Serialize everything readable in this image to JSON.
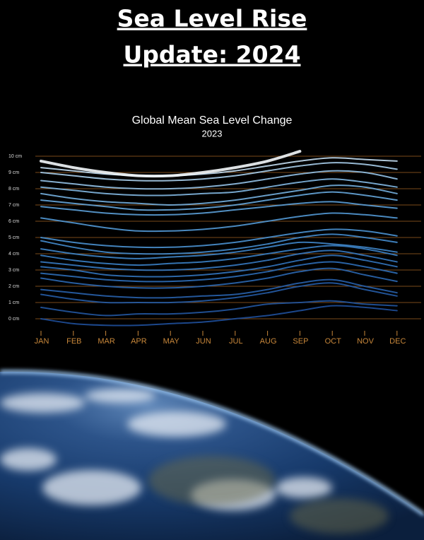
{
  "header": {
    "title": [
      "Sea Level Rise",
      "Update: 2024"
    ]
  },
  "chart_data": {
    "type": "line",
    "title": "Global Mean Sea Level Change",
    "subtitle": "2023",
    "categories": [
      "JAN",
      "FEB",
      "MAR",
      "APR",
      "MAY",
      "JUN",
      "JUL",
      "AUG",
      "SEP",
      "OCT",
      "NOV",
      "DEC"
    ],
    "ylim": [
      0,
      10
    ],
    "yticks": [
      {
        "value": 0,
        "label": "0 cm"
      },
      {
        "value": 1,
        "label": "1 cm"
      },
      {
        "value": 2,
        "label": "2 cm"
      },
      {
        "value": 3,
        "label": "3 cm"
      },
      {
        "value": 4,
        "label": "4 cm"
      },
      {
        "value": 5,
        "label": "5 cm"
      },
      {
        "value": 6,
        "label": "6 cm"
      },
      {
        "value": 7,
        "label": "7 cm"
      },
      {
        "value": 8,
        "label": "8 cm"
      },
      {
        "value": 9,
        "label": "9 cm"
      },
      {
        "value": 10,
        "label": "10 cm"
      }
    ],
    "grid": true,
    "grid_color": "#7a4a1a",
    "tick_label_color": "#c8873a",
    "series": [
      {
        "color": "#1f4f9a",
        "values": [
          0.0,
          -0.3,
          -0.4,
          -0.4,
          -0.3,
          -0.2,
          0.0,
          0.2,
          0.5,
          0.8,
          0.7,
          0.5
        ]
      },
      {
        "color": "#22559f",
        "values": [
          0.7,
          0.4,
          0.2,
          0.3,
          0.3,
          0.4,
          0.6,
          0.9,
          1.0,
          1.1,
          0.9,
          0.8
        ]
      },
      {
        "color": "#255ba5",
        "values": [
          1.5,
          1.2,
          1.0,
          1.0,
          1.0,
          1.1,
          1.3,
          1.6,
          2.0,
          2.2,
          1.8,
          1.4
        ]
      },
      {
        "color": "#2861ab",
        "values": [
          1.8,
          1.6,
          1.4,
          1.3,
          1.3,
          1.4,
          1.5,
          1.8,
          2.2,
          2.4,
          2.0,
          1.6
        ]
      },
      {
        "color": "#2b67b0",
        "values": [
          2.5,
          2.2,
          2.0,
          1.9,
          1.9,
          2.0,
          2.2,
          2.5,
          2.9,
          3.1,
          2.7,
          2.3
        ]
      },
      {
        "color": "#2e6db6",
        "values": [
          2.8,
          2.6,
          2.4,
          2.3,
          2.3,
          2.4,
          2.6,
          2.9,
          3.3,
          3.5,
          3.2,
          2.8
        ]
      },
      {
        "color": "#3273bb",
        "values": [
          3.2,
          3.0,
          2.7,
          2.6,
          2.6,
          2.7,
          2.9,
          3.2,
          3.6,
          3.9,
          3.6,
          3.2
        ]
      },
      {
        "color": "#3679c0",
        "values": [
          3.5,
          3.3,
          3.1,
          3.0,
          3.0,
          3.1,
          3.3,
          3.6,
          4.0,
          4.2,
          3.9,
          3.5
        ]
      },
      {
        "color": "#3a7fc4",
        "values": [
          3.9,
          3.6,
          3.4,
          3.3,
          3.4,
          3.5,
          3.7,
          4.0,
          4.3,
          4.5,
          4.3,
          3.9
        ]
      },
      {
        "color": "#3f85c8",
        "values": [
          4.3,
          4.0,
          3.8,
          3.7,
          3.8,
          3.9,
          4.1,
          4.4,
          4.7,
          4.6,
          4.4,
          4.1
        ]
      },
      {
        "color": "#448bcc",
        "values": [
          4.8,
          4.4,
          4.1,
          4.0,
          4.0,
          4.1,
          4.3,
          4.6,
          5.0,
          5.2,
          5.0,
          4.7
        ]
      },
      {
        "color": "#4a91d0",
        "values": [
          5.0,
          4.7,
          4.5,
          4.4,
          4.4,
          4.5,
          4.7,
          5.0,
          5.3,
          5.5,
          5.4,
          5.1
        ]
      },
      {
        "color": "#5298d4",
        "values": [
          6.2,
          5.9,
          5.6,
          5.4,
          5.4,
          5.5,
          5.7,
          6.0,
          6.3,
          6.5,
          6.4,
          6.2
        ]
      },
      {
        "color": "#5b9fd7",
        "values": [
          6.9,
          6.7,
          6.5,
          6.4,
          6.4,
          6.5,
          6.7,
          6.9,
          7.1,
          7.2,
          7.0,
          6.8
        ]
      },
      {
        "color": "#66a6da",
        "values": [
          7.3,
          7.1,
          6.9,
          6.7,
          6.7,
          6.8,
          7.0,
          7.3,
          7.6,
          7.8,
          7.6,
          7.3
        ]
      },
      {
        "color": "#73aedd",
        "values": [
          7.7,
          7.4,
          7.2,
          7.1,
          7.0,
          7.1,
          7.3,
          7.6,
          7.9,
          8.2,
          8.1,
          7.7
        ]
      },
      {
        "color": "#82b7e1",
        "values": [
          8.1,
          7.9,
          7.7,
          7.6,
          7.6,
          7.7,
          7.8,
          8.1,
          8.4,
          8.6,
          8.4,
          8.1
        ]
      },
      {
        "color": "#93c1e5",
        "values": [
          8.5,
          8.3,
          8.1,
          8.0,
          8.0,
          8.1,
          8.3,
          8.6,
          8.9,
          9.1,
          9.0,
          8.6
        ]
      },
      {
        "color": "#a7cdea",
        "values": [
          9.0,
          8.8,
          8.6,
          8.5,
          8.5,
          8.6,
          8.8,
          9.1,
          9.4,
          9.6,
          9.5,
          9.2
        ]
      },
      {
        "color": "#c2dcf0",
        "values": [
          9.3,
          9.1,
          8.9,
          8.8,
          8.8,
          8.9,
          9.1,
          9.4,
          9.7,
          9.9,
          9.8,
          9.7
        ]
      },
      {
        "color": "#f4f8fc",
        "values": [
          9.7,
          9.3,
          9.0,
          8.8,
          8.8,
          9.0,
          9.3,
          9.7,
          10.3,
          null,
          null,
          null
        ]
      }
    ]
  }
}
